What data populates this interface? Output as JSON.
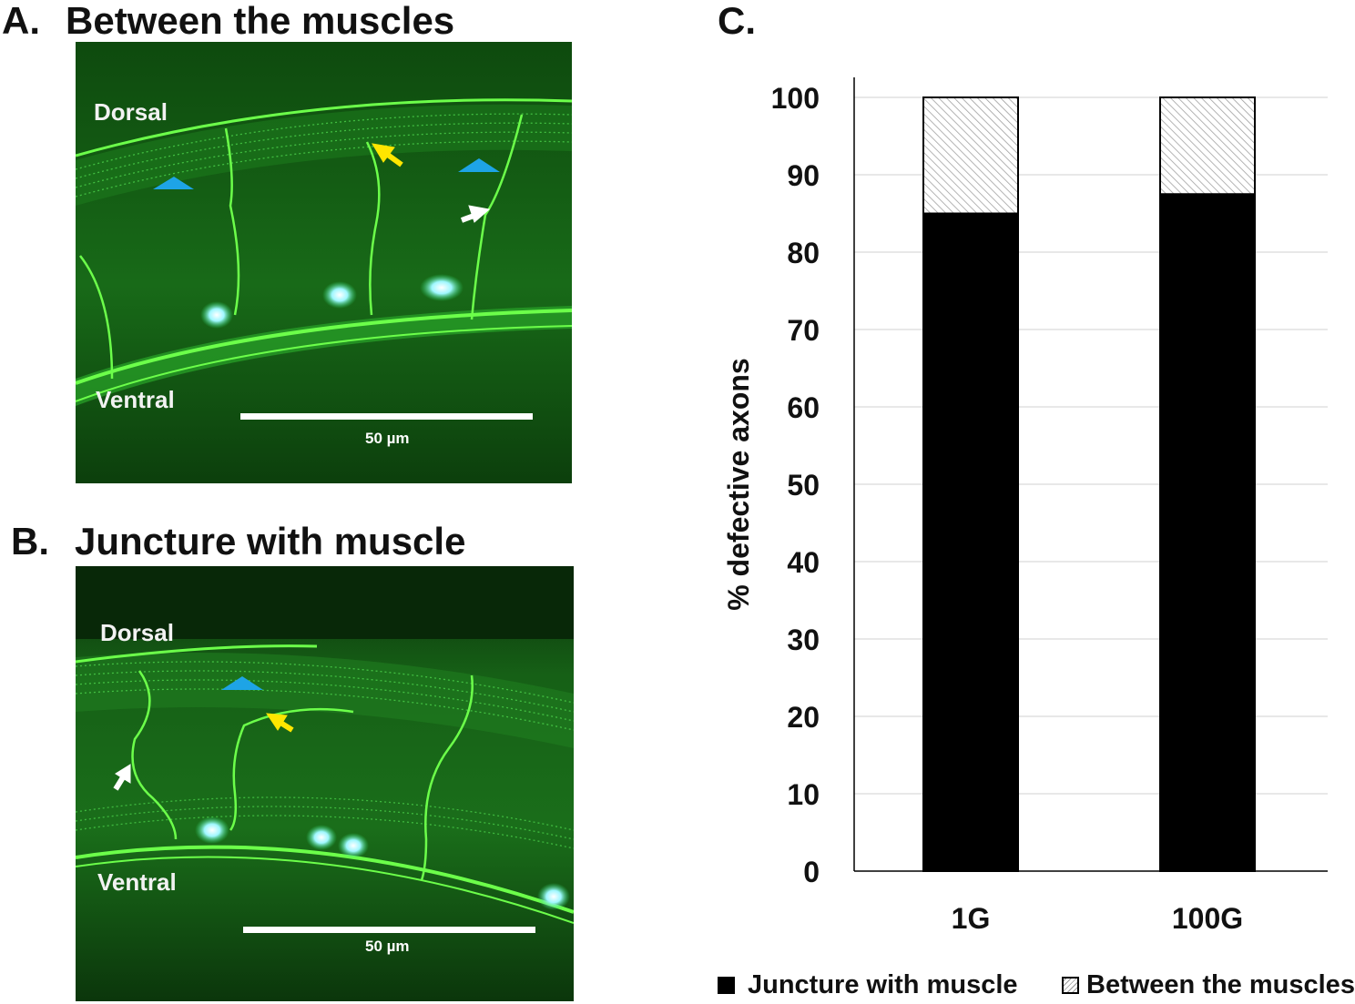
{
  "panels": {
    "a": {
      "letter": "A.",
      "title": "Between the muscles",
      "dorsal_label": "Dorsal",
      "ventral_label": "Ventral",
      "scale_label": "50 µm"
    },
    "b": {
      "letter": "B.",
      "title": "Juncture with muscle",
      "dorsal_label": "Dorsal",
      "ventral_label": "Ventral",
      "scale_label": "50 µm"
    },
    "c": {
      "letter": "C."
    }
  },
  "colors": {
    "tissue_dark": "#0b3d0b",
    "tissue_mid": "#145a14",
    "neuron_green": "#6cff4a",
    "nucleus_cyan": "#9ff7ff",
    "arrowhead_blue": "#1ea4e6",
    "arrow_yellow": "#ffe600",
    "arrow_white": "#ffffff",
    "bar_solid": "#000000",
    "bar_hatch_bg": "#ffffff",
    "bar_hatch_line": "#9a9a9a",
    "gridline": "#d9d9d9"
  },
  "chart_data": {
    "type": "bar",
    "stacked": true,
    "categories": [
      "1G",
      "100G"
    ],
    "series": [
      {
        "name": "Juncture with muscle",
        "values": [
          85,
          87.5
        ],
        "style": "solid-black"
      },
      {
        "name": "Between the muscles",
        "values": [
          15,
          12.5
        ],
        "style": "hatched"
      }
    ],
    "title": "",
    "xlabel": "",
    "ylabel": "% defective axons",
    "ylim": [
      0,
      100
    ],
    "yticks": [
      0,
      10,
      20,
      30,
      40,
      50,
      60,
      70,
      80,
      90,
      100
    ],
    "grid": true,
    "legend_position": "bottom"
  }
}
